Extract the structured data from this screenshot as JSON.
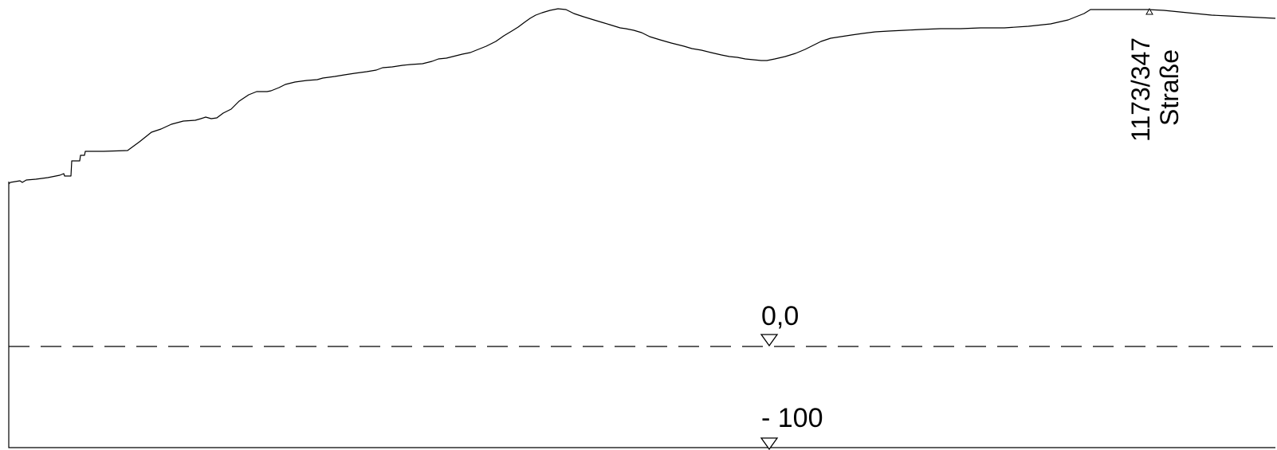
{
  "drawing": {
    "stroke_color": "#000000",
    "background": "#ffffff",
    "parcel_label": "1173/347",
    "street_label": "Straße",
    "zero_level_label": "0,0",
    "lower_level_label": "- 100"
  }
}
